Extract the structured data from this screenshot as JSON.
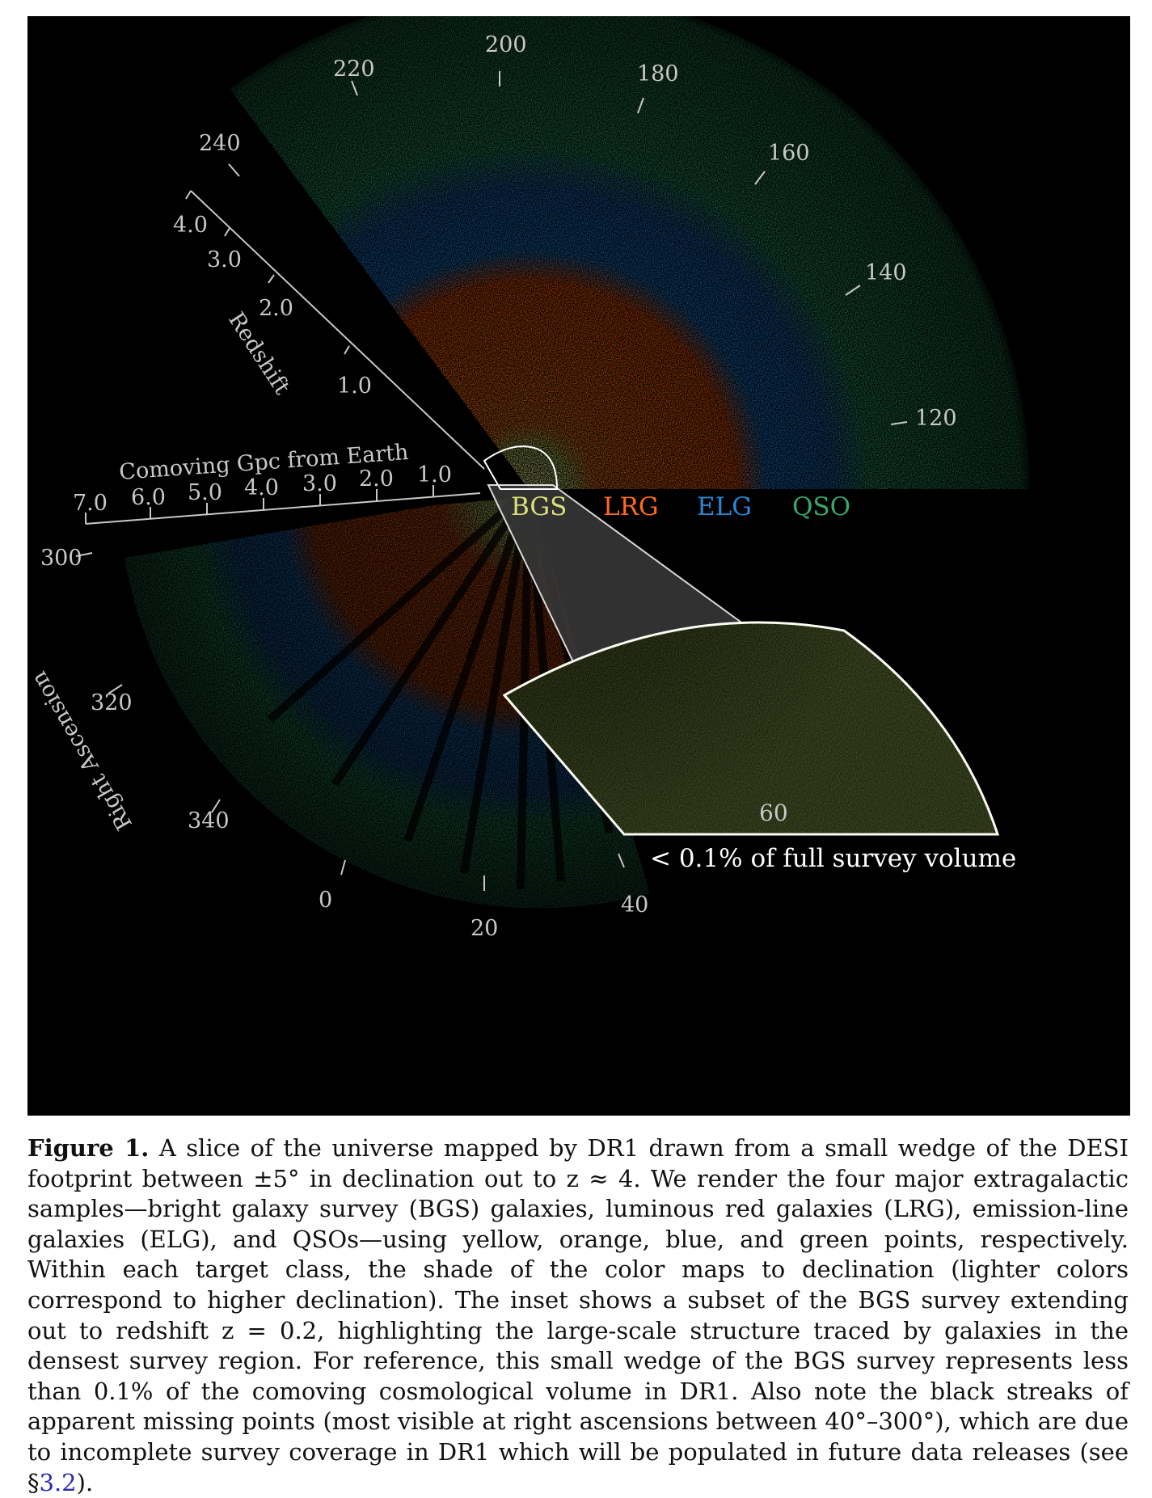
{
  "figure": {
    "redshift_axis": {
      "title": "Redshift",
      "ticks": [
        "1.0",
        "2.0",
        "3.0",
        "4.0"
      ]
    },
    "comoving_axis": {
      "title": "Comoving Gpc from Earth",
      "ticks": [
        "1.0",
        "2.0",
        "3.0",
        "4.0",
        "5.0",
        "6.0",
        "7.0"
      ]
    },
    "ra_axis": {
      "title": "Right Ascension",
      "ticks": [
        "120",
        "140",
        "160",
        "180",
        "200",
        "220",
        "240",
        "300",
        "320",
        "340",
        "0",
        "20",
        "40"
      ]
    },
    "legend": [
      {
        "label": "BGS",
        "color": "#d9e07a"
      },
      {
        "label": "LRG",
        "color": "#ff6a1a"
      },
      {
        "label": "ELG",
        "color": "#2b86d6"
      },
      {
        "label": "QSO",
        "color": "#3aa86a"
      }
    ],
    "inset_note": "< 0.1% of full survey volume",
    "inset_faint_text": "60"
  },
  "caption": {
    "label": "Figure 1.",
    "text_before_ref": " A slice of the universe mapped by DR1 drawn from a small wedge of the DESI footprint between ±5° in declination out to z ≈ 4. We render the four major extragalactic samples—bright galaxy survey (BGS) galaxies, luminous red galaxies (LRG), emission-line galaxies (ELG), and QSOs—using yellow, orange, blue, and green points, respectively. Within each target class, the shade of the color maps to declination (lighter colors correspond to higher declination). The inset shows a subset of the BGS survey extending out to redshift z = 0.2, highlighting the large-scale structure traced by galaxies in the densest survey region. For reference, this small wedge of the BGS survey represents less than 0.1% of the comoving cosmological volume in DR1. Also note the black streaks of apparent missing points (most visible at right ascensions between 40°–300°), which are due to incomplete survey coverage in DR1 which will be populated in future data releases (see §",
    "ref": "3.2",
    "text_after_ref": ")."
  }
}
